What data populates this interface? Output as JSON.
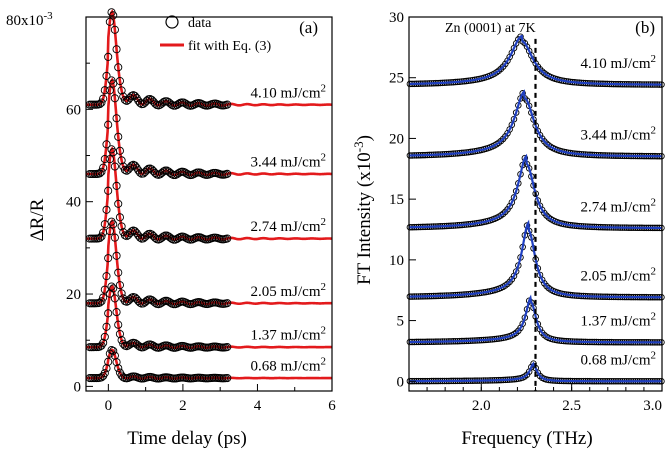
{
  "chart_data": [
    {
      "type": "line",
      "panel_label": "(a)",
      "xlabel": "Time delay (ps)",
      "ylabel": "ΔR/R",
      "y_exponent_label": "x10",
      "y_exponent": "-3",
      "xlim": [
        -0.6,
        6
      ],
      "ylim": [
        -1,
        80
      ],
      "x_ticks": [
        0,
        2,
        4,
        6
      ],
      "y_ticks": [
        0,
        20,
        40,
        60,
        80
      ],
      "y_tick_labels": [
        "0",
        "20",
        "40",
        "60",
        "80"
      ],
      "legend": {
        "position": "top-right",
        "entries": [
          {
            "label": "data",
            "marker": "open-circle",
            "color": "#000000"
          },
          {
            "label": "fit with Eq. (3)",
            "marker": "line",
            "color": "#e31a1c"
          }
        ]
      },
      "series": [
        {
          "fluence_value": "0.68 mJ/cm",
          "fluence_sup": "2",
          "baseline": 1.8,
          "peak": 5.8,
          "background": 0.4,
          "osc": 0.35
        },
        {
          "fluence_value": "1.37 mJ/cm",
          "fluence_sup": "2",
          "baseline": 8.5,
          "peak": 12.0,
          "background": 1.5,
          "osc": 0.7
        },
        {
          "fluence_value": "2.05 mJ/cm",
          "fluence_sup": "2",
          "baseline": 18.0,
          "peak": 16.0,
          "background": 2.2,
          "osc": 1.0
        },
        {
          "fluence_value": "2.74 mJ/cm",
          "fluence_sup": "2",
          "baseline": 32.0,
          "peak": 17.0,
          "background": 3.0,
          "osc": 1.2
        },
        {
          "fluence_value": "3.44 mJ/cm",
          "fluence_sup": "2",
          "baseline": 46.0,
          "peak": 17.5,
          "background": 3.5,
          "osc": 1.3
        },
        {
          "fluence_value": "4.10 mJ/cm",
          "fluence_sup": "2",
          "baseline": 61.0,
          "peak": 17.0,
          "background": 3.8,
          "osc": 1.3
        }
      ]
    },
    {
      "type": "line",
      "panel_label": "(b)",
      "title": "Zn (0001) at 7K",
      "xlabel": "Frequency (THz)",
      "ylabel": "FT Intensity (x10",
      "ylabel_sup": "-3",
      "ylabel_close": ")",
      "xlim": [
        1.6,
        3.0
      ],
      "ylim": [
        -0.8,
        30
      ],
      "x_ticks": [
        2.0,
        2.5,
        3.0
      ],
      "x_tick_labels": [
        "2.0",
        "2.5",
        "3.0"
      ],
      "y_ticks": [
        0,
        5,
        10,
        15,
        20,
        25,
        30
      ],
      "y_tick_labels": [
        "0",
        "5",
        "10",
        "15",
        "20",
        "25",
        "30"
      ],
      "reference_line_x": 2.3,
      "data_color": "#000000",
      "fit_color": "#1f3fbf",
      "series": [
        {
          "fluence_value": "0.68 mJ/cm",
          "fluence_sup": "2",
          "baseline": 0.0,
          "peak_freq": 2.29,
          "amplitude": 1.3,
          "width": 0.025
        },
        {
          "fluence_value": "1.37 mJ/cm",
          "fluence_sup": "2",
          "baseline": 3.2,
          "peak_freq": 2.275,
          "amplitude": 3.3,
          "width": 0.035
        },
        {
          "fluence_value": "2.05 mJ/cm",
          "fluence_sup": "2",
          "baseline": 6.9,
          "peak_freq": 2.262,
          "amplitude": 5.5,
          "width": 0.045
        },
        {
          "fluence_value": "2.74 mJ/cm",
          "fluence_sup": "2",
          "baseline": 12.6,
          "peak_freq": 2.25,
          "amplitude": 5.3,
          "width": 0.055
        },
        {
          "fluence_value": "3.44 mJ/cm",
          "fluence_sup": "2",
          "baseline": 18.5,
          "peak_freq": 2.24,
          "amplitude": 4.8,
          "width": 0.065
        },
        {
          "fluence_value": "4.10 mJ/cm",
          "fluence_sup": "2",
          "baseline": 24.4,
          "peak_freq": 2.225,
          "amplitude": 3.6,
          "width": 0.075
        }
      ]
    }
  ]
}
